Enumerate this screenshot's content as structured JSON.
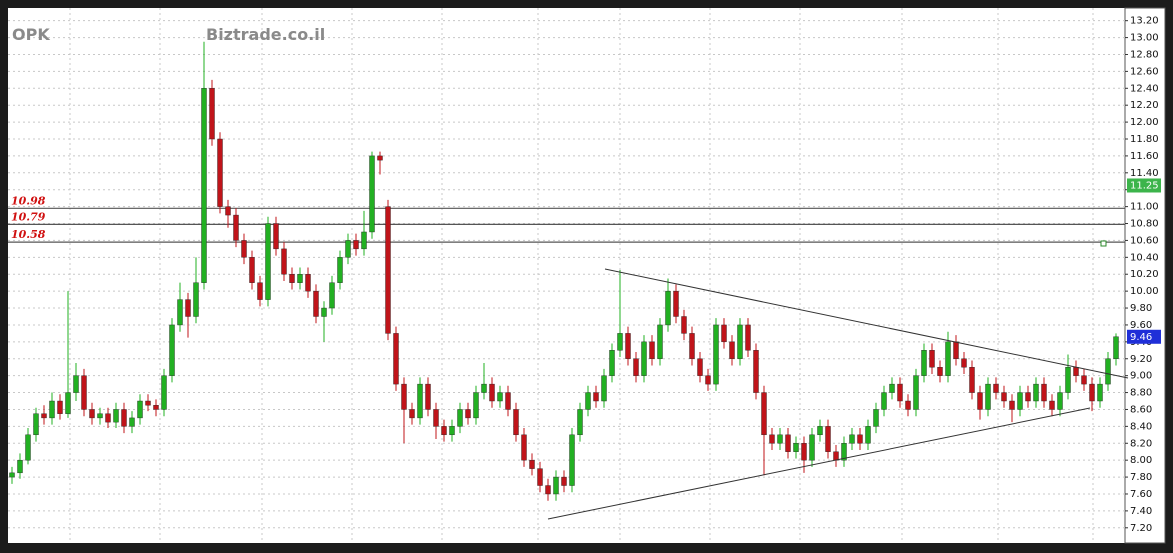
{
  "chart_data": {
    "type": "candlestick",
    "symbol": "OPK",
    "source": "Biztrade.co.il",
    "up_color": "#22b022",
    "down_color": "#c0141a",
    "ylim": [
      7.02,
      13.35
    ],
    "yticks": [
      {
        "value": 7.2,
        "label": "7.20"
      },
      {
        "value": 7.4,
        "label": "7.40"
      },
      {
        "value": 7.6,
        "label": "7.60"
      },
      {
        "value": 7.8,
        "label": "7.80"
      },
      {
        "value": 8.0,
        "label": "8.00"
      },
      {
        "value": 8.2,
        "label": "8.20"
      },
      {
        "value": 8.4,
        "label": "8.40"
      },
      {
        "value": 8.6,
        "label": "8.60"
      },
      {
        "value": 8.8,
        "label": "8.80"
      },
      {
        "value": 9.0,
        "label": "9.00"
      },
      {
        "value": 9.2,
        "label": "9.20"
      },
      {
        "value": 9.4,
        "label": "9.40"
      },
      {
        "value": 9.6,
        "label": "9.60"
      },
      {
        "value": 9.8,
        "label": "9.80"
      },
      {
        "value": 10.0,
        "label": "10.00"
      },
      {
        "value": 10.2,
        "label": "10.20"
      },
      {
        "value": 10.4,
        "label": "10.40"
      },
      {
        "value": 10.6,
        "label": "10.60"
      },
      {
        "value": 10.8,
        "label": "10.80"
      },
      {
        "value": 11.0,
        "label": "11.00"
      },
      {
        "value": 11.2,
        "label": "11.20"
      },
      {
        "value": 11.4,
        "label": "11.40"
      },
      {
        "value": 11.6,
        "label": "11.60"
      },
      {
        "value": 11.8,
        "label": "11.80"
      },
      {
        "value": 12.0,
        "label": "12.00"
      },
      {
        "value": 12.2,
        "label": "12.20"
      },
      {
        "value": 12.4,
        "label": "12.40"
      },
      {
        "value": 12.6,
        "label": "12.60"
      },
      {
        "value": 12.8,
        "label": "12.80"
      },
      {
        "value": 13.0,
        "label": "13.00"
      },
      {
        "value": 13.2,
        "label": "13.20"
      }
    ],
    "grid": true,
    "levels": [
      10.98,
      10.79,
      10.58
    ],
    "price_tags": [
      {
        "value": 11.25,
        "color": "#3cb44b"
      },
      {
        "value": 9.46,
        "color": "#1f2fd8"
      }
    ],
    "candles": [
      [
        7.8,
        7.92,
        7.72,
        7.85
      ],
      [
        7.85,
        8.08,
        7.78,
        8.0
      ],
      [
        8.0,
        8.38,
        7.95,
        8.3
      ],
      [
        8.3,
        8.62,
        8.22,
        8.55
      ],
      [
        8.55,
        8.65,
        8.42,
        8.5
      ],
      [
        8.5,
        8.8,
        8.42,
        8.7
      ],
      [
        8.7,
        8.78,
        8.48,
        8.55
      ],
      [
        8.55,
        10.0,
        8.5,
        8.8
      ],
      [
        8.8,
        9.15,
        8.7,
        9.0
      ],
      [
        9.0,
        9.08,
        8.52,
        8.6
      ],
      [
        8.6,
        8.68,
        8.42,
        8.5
      ],
      [
        8.5,
        8.62,
        8.42,
        8.55
      ],
      [
        8.55,
        8.62,
        8.38,
        8.45
      ],
      [
        8.45,
        8.68,
        8.38,
        8.6
      ],
      [
        8.6,
        8.68,
        8.32,
        8.4
      ],
      [
        8.4,
        8.58,
        8.32,
        8.5
      ],
      [
        8.5,
        8.78,
        8.42,
        8.7
      ],
      [
        8.7,
        8.78,
        8.58,
        8.65
      ],
      [
        8.65,
        8.72,
        8.52,
        8.6
      ],
      [
        8.6,
        9.08,
        8.52,
        9.0
      ],
      [
        9.0,
        9.68,
        8.92,
        9.6
      ],
      [
        9.6,
        10.1,
        9.52,
        9.9
      ],
      [
        9.9,
        9.98,
        9.45,
        9.7
      ],
      [
        9.7,
        10.4,
        9.62,
        10.1
      ],
      [
        10.1,
        12.95,
        10.02,
        12.4
      ],
      [
        12.4,
        12.5,
        11.72,
        11.8
      ],
      [
        11.8,
        11.88,
        10.92,
        11.0
      ],
      [
        11.0,
        11.08,
        10.75,
        10.9
      ],
      [
        10.9,
        10.98,
        10.52,
        10.6
      ],
      [
        10.6,
        10.68,
        10.32,
        10.4
      ],
      [
        10.4,
        10.48,
        10.02,
        10.1
      ],
      [
        10.1,
        10.18,
        9.82,
        9.9
      ],
      [
        9.9,
        10.88,
        9.82,
        10.8
      ],
      [
        10.8,
        10.88,
        10.42,
        10.5
      ],
      [
        10.5,
        10.58,
        10.12,
        10.2
      ],
      [
        10.2,
        10.28,
        10.02,
        10.1
      ],
      [
        10.1,
        10.28,
        10.02,
        10.2
      ],
      [
        10.2,
        10.28,
        9.92,
        10.0
      ],
      [
        10.0,
        10.08,
        9.62,
        9.7
      ],
      [
        9.7,
        9.88,
        9.4,
        9.8
      ],
      [
        9.8,
        10.18,
        9.72,
        10.1
      ],
      [
        10.1,
        10.48,
        10.02,
        10.4
      ],
      [
        10.4,
        10.68,
        10.32,
        10.6
      ],
      [
        10.6,
        10.68,
        10.42,
        10.5
      ],
      [
        10.5,
        10.95,
        10.42,
        10.7
      ],
      [
        10.7,
        11.65,
        10.62,
        11.6
      ],
      [
        11.6,
        11.65,
        11.38,
        11.55
      ],
      [
        11.0,
        11.08,
        9.42,
        9.5
      ],
      [
        9.5,
        9.58,
        8.82,
        8.9
      ],
      [
        8.9,
        8.98,
        8.2,
        8.6
      ],
      [
        8.6,
        8.68,
        8.42,
        8.5
      ],
      [
        8.5,
        8.98,
        8.42,
        8.9
      ],
      [
        8.9,
        8.98,
        8.52,
        8.6
      ],
      [
        8.6,
        8.68,
        8.25,
        8.4
      ],
      [
        8.4,
        8.48,
        8.22,
        8.3
      ],
      [
        8.3,
        8.48,
        8.22,
        8.4
      ],
      [
        8.4,
        8.68,
        8.32,
        8.6
      ],
      [
        8.6,
        8.68,
        8.42,
        8.5
      ],
      [
        8.5,
        8.88,
        8.42,
        8.8
      ],
      [
        8.8,
        9.15,
        8.72,
        8.9
      ],
      [
        8.9,
        8.98,
        8.62,
        8.7
      ],
      [
        8.7,
        8.88,
        8.62,
        8.8
      ],
      [
        8.8,
        8.88,
        8.52,
        8.6
      ],
      [
        8.6,
        8.68,
        8.22,
        8.3
      ],
      [
        8.3,
        8.38,
        7.92,
        8.0
      ],
      [
        8.0,
        8.08,
        7.82,
        7.9
      ],
      [
        7.9,
        7.98,
        7.62,
        7.7
      ],
      [
        7.7,
        7.78,
        7.52,
        7.6
      ],
      [
        7.6,
        7.88,
        7.52,
        7.8
      ],
      [
        7.8,
        7.88,
        7.62,
        7.7
      ],
      [
        7.7,
        8.38,
        7.62,
        8.3
      ],
      [
        8.3,
        8.68,
        8.22,
        8.6
      ],
      [
        8.6,
        8.88,
        8.52,
        8.8
      ],
      [
        8.8,
        8.88,
        8.62,
        8.7
      ],
      [
        8.7,
        9.08,
        8.62,
        9.0
      ],
      [
        9.0,
        9.38,
        8.92,
        9.3
      ],
      [
        9.3,
        10.25,
        9.22,
        9.5
      ],
      [
        9.5,
        9.58,
        9.12,
        9.2
      ],
      [
        9.2,
        9.28,
        8.92,
        9.0
      ],
      [
        9.0,
        9.48,
        8.92,
        9.4
      ],
      [
        9.4,
        9.48,
        9.12,
        9.2
      ],
      [
        9.2,
        9.68,
        9.12,
        9.6
      ],
      [
        9.6,
        10.15,
        9.52,
        10.0
      ],
      [
        10.0,
        10.08,
        9.62,
        9.7
      ],
      [
        9.7,
        9.78,
        9.42,
        9.5
      ],
      [
        9.5,
        9.58,
        9.12,
        9.2
      ],
      [
        9.2,
        9.28,
        8.92,
        9.0
      ],
      [
        9.0,
        9.08,
        8.82,
        8.9
      ],
      [
        8.9,
        9.68,
        8.82,
        9.6
      ],
      [
        9.6,
        9.68,
        9.32,
        9.4
      ],
      [
        9.4,
        9.48,
        9.12,
        9.2
      ],
      [
        9.2,
        9.68,
        9.12,
        9.6
      ],
      [
        9.6,
        9.68,
        9.22,
        9.3
      ],
      [
        9.3,
        9.38,
        8.72,
        8.8
      ],
      [
        8.8,
        8.88,
        7.82,
        8.3
      ],
      [
        8.3,
        8.38,
        8.12,
        8.2
      ],
      [
        8.2,
        8.38,
        8.12,
        8.3
      ],
      [
        8.3,
        8.38,
        8.02,
        8.1
      ],
      [
        8.1,
        8.28,
        8.02,
        8.2
      ],
      [
        8.2,
        8.28,
        7.85,
        8.0
      ],
      [
        8.0,
        8.38,
        7.92,
        8.3
      ],
      [
        8.3,
        8.48,
        8.22,
        8.4
      ],
      [
        8.4,
        8.48,
        8.02,
        8.1
      ],
      [
        8.1,
        8.18,
        7.92,
        8.0
      ],
      [
        8.0,
        8.28,
        7.92,
        8.2
      ],
      [
        8.2,
        8.38,
        8.12,
        8.3
      ],
      [
        8.3,
        8.38,
        8.12,
        8.2
      ],
      [
        8.2,
        8.48,
        8.12,
        8.4
      ],
      [
        8.4,
        8.68,
        8.32,
        8.6
      ],
      [
        8.6,
        8.88,
        8.52,
        8.8
      ],
      [
        8.8,
        8.98,
        8.72,
        8.9
      ],
      [
        8.9,
        8.98,
        8.62,
        8.7
      ],
      [
        8.7,
        8.78,
        8.52,
        8.6
      ],
      [
        8.6,
        9.08,
        8.52,
        9.0
      ],
      [
        9.0,
        9.38,
        8.92,
        9.3
      ],
      [
        9.3,
        9.38,
        9.02,
        9.1
      ],
      [
        9.1,
        9.18,
        8.92,
        9.0
      ],
      [
        9.0,
        9.52,
        8.92,
        9.4
      ],
      [
        9.4,
        9.48,
        9.12,
        9.2
      ],
      [
        9.2,
        9.28,
        9.02,
        9.1
      ],
      [
        9.1,
        9.18,
        8.72,
        8.8
      ],
      [
        8.8,
        8.88,
        8.48,
        8.6
      ],
      [
        8.6,
        8.98,
        8.52,
        8.9
      ],
      [
        8.9,
        8.98,
        8.72,
        8.8
      ],
      [
        8.8,
        8.88,
        8.62,
        8.7
      ],
      [
        8.7,
        8.78,
        8.45,
        8.6
      ],
      [
        8.6,
        8.88,
        8.52,
        8.8
      ],
      [
        8.8,
        8.88,
        8.62,
        8.7
      ],
      [
        8.7,
        8.98,
        8.62,
        8.9
      ],
      [
        8.9,
        8.98,
        8.62,
        8.7
      ],
      [
        8.7,
        8.78,
        8.52,
        8.6
      ],
      [
        8.6,
        8.88,
        8.52,
        8.8
      ],
      [
        8.8,
        9.25,
        8.72,
        9.1
      ],
      [
        9.1,
        9.18,
        8.92,
        9.0
      ],
      [
        9.0,
        9.08,
        8.82,
        8.9
      ],
      [
        8.9,
        8.98,
        8.58,
        8.7
      ],
      [
        8.7,
        8.98,
        8.62,
        8.9
      ],
      [
        8.9,
        9.28,
        8.82,
        9.2
      ],
      [
        9.2,
        9.5,
        9.12,
        9.46
      ]
    ]
  }
}
